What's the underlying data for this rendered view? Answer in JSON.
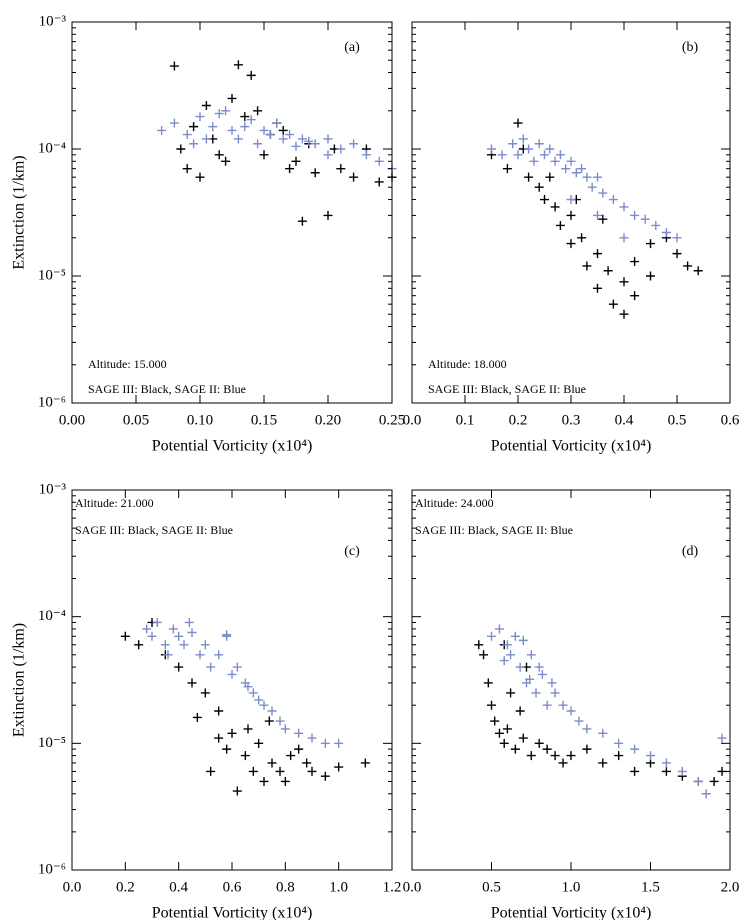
{
  "chart_data": [
    {
      "type": "scatter",
      "panel_label": "(a)",
      "annotations": [
        "Altitude: 15.000",
        "SAGE III: Black, SAGE II: Blue"
      ],
      "xlabel": "Potential Vorticity (x10⁴)",
      "ylabel": "Extinction (1/km)",
      "yscale": "log",
      "xlim": [
        0,
        0.25
      ],
      "xticks": [
        {
          "value": 0,
          "label": "0.00"
        },
        0.05,
        {
          "value": 0.1,
          "label": "0.10"
        },
        0.15,
        {
          "value": 0.2,
          "label": "0.20"
        },
        0.25
      ],
      "ylim": [
        1e-06,
        0.001
      ],
      "yticks": [
        {
          "value": 1e-06,
          "label": "10⁻⁶"
        },
        {
          "value": 1e-05,
          "label": "10⁻⁵"
        },
        {
          "value": 0.0001,
          "label": "10⁻⁴"
        },
        {
          "value": 0.001,
          "label": "10⁻³"
        }
      ],
      "series": [
        {
          "color": "#000000",
          "x": [
            0.08,
            0.13,
            0.14,
            0.09,
            0.1,
            0.12,
            0.15,
            0.17,
            0.18,
            0.2,
            0.22,
            0.24,
            0.25,
            0.21,
            0.19,
            0.16,
            0.11,
            0.085,
            0.095,
            0.105,
            0.125,
            0.145,
            0.165,
            0.185,
            0.205,
            0.23,
            0.175,
            0.155,
            0.135,
            0.115
          ],
          "values": [
            0.00045,
            0.00046,
            0.00038,
            7e-05,
            6e-05,
            8e-05,
            9e-05,
            7e-05,
            2.7e-05,
            3e-05,
            6e-05,
            5.5e-05,
            6e-05,
            7e-05,
            6.5e-05,
            0.00016,
            0.00012,
            0.0001,
            0.00015,
            0.00022,
            0.00025,
            0.0002,
            0.00014,
            0.00011,
            0.0001,
            0.0001,
            8e-05,
            0.00013,
            0.00018,
            9e-05
          ]
        },
        {
          "color": "#7b8ccc",
          "x": [
            0.07,
            0.08,
            0.09,
            0.1,
            0.11,
            0.12,
            0.13,
            0.14,
            0.15,
            0.16,
            0.17,
            0.18,
            0.19,
            0.2,
            0.21,
            0.22,
            0.23,
            0.24,
            0.25,
            0.095,
            0.105,
            0.115,
            0.125,
            0.135,
            0.145,
            0.155,
            0.165,
            0.175,
            0.185,
            0.2
          ],
          "values": [
            0.00014,
            0.00016,
            0.00013,
            0.00018,
            0.00015,
            0.0002,
            0.00012,
            0.00017,
            0.00014,
            0.00016,
            0.00013,
            0.00012,
            0.00011,
            0.00012,
            0.0001,
            0.00011,
            9e-05,
            8e-05,
            7e-05,
            0.00011,
            0.00012,
            0.00019,
            0.00014,
            0.00015,
            0.00011,
            0.00013,
            0.00012,
            0.000105,
            0.000115,
            9e-05
          ]
        }
      ]
    },
    {
      "type": "scatter",
      "panel_label": "(b)",
      "annotations": [
        "Altitude: 18.000",
        "SAGE III: Black, SAGE II: Blue"
      ],
      "xlabel": "Potential Vorticity (x10⁴)",
      "yscale": "log",
      "xlim": [
        0,
        0.6
      ],
      "xticks": [
        {
          "value": 0,
          "label": "0.0"
        },
        0.1,
        0.2,
        0.3,
        0.4,
        0.5,
        0.6
      ],
      "ylim": [
        1e-06,
        0.001
      ],
      "series": [
        {
          "color": "#000000",
          "x": [
            0.15,
            0.18,
            0.2,
            0.22,
            0.24,
            0.25,
            0.27,
            0.28,
            0.3,
            0.3,
            0.32,
            0.33,
            0.35,
            0.35,
            0.37,
            0.38,
            0.4,
            0.4,
            0.42,
            0.42,
            0.45,
            0.45,
            0.48,
            0.5,
            0.52,
            0.54,
            0.21,
            0.26,
            0.31,
            0.36
          ],
          "values": [
            9e-05,
            7e-05,
            0.00016,
            6e-05,
            5e-05,
            4e-05,
            3.5e-05,
            2.5e-05,
            3e-05,
            1.8e-05,
            2e-05,
            1.2e-05,
            1.5e-05,
            8e-06,
            1.1e-05,
            6e-06,
            5e-06,
            9e-06,
            7e-06,
            1.3e-05,
            1e-05,
            1.8e-05,
            2e-05,
            1.5e-05,
            1.2e-05,
            1.1e-05,
            0.0001,
            6e-05,
            4e-05,
            2.8e-05
          ]
        },
        {
          "color": "#7b8ccc",
          "x": [
            0.15,
            0.17,
            0.19,
            0.2,
            0.21,
            0.22,
            0.23,
            0.24,
            0.25,
            0.26,
            0.27,
            0.28,
            0.29,
            0.3,
            0.31,
            0.32,
            0.33,
            0.34,
            0.35,
            0.36,
            0.38,
            0.4,
            0.42,
            0.44,
            0.46,
            0.48,
            0.5,
            0.3,
            0.35,
            0.4
          ],
          "values": [
            0.0001,
            9e-05,
            0.00011,
            9e-05,
            0.00012,
            0.0001,
            8e-05,
            0.00011,
            9e-05,
            0.0001,
            8e-05,
            9e-05,
            7e-05,
            8e-05,
            6.5e-05,
            7e-05,
            6e-05,
            5e-05,
            6e-05,
            4.5e-05,
            4e-05,
            3.5e-05,
            3e-05,
            2.8e-05,
            2.5e-05,
            2.2e-05,
            2e-05,
            4e-05,
            3e-05,
            2e-05
          ]
        }
      ]
    },
    {
      "type": "scatter",
      "panel_label": "(c)",
      "annotations": [
        "Altitude: 21.000",
        "SAGE III: Black, SAGE II: Blue"
      ],
      "xlabel": "Potential Vorticity (x10⁴)",
      "ylabel": "Extinction (1/km)",
      "yscale": "log",
      "xlim": [
        0,
        1.2
      ],
      "xticks": [
        {
          "value": 0,
          "label": "0.0"
        },
        0.2,
        0.4,
        0.6,
        0.8,
        {
          "value": 1,
          "label": "1.0"
        },
        1.2
      ],
      "ylim": [
        1e-06,
        0.001
      ],
      "yticks": [
        {
          "value": 1e-06,
          "label": "10⁻⁶"
        },
        {
          "value": 1e-05,
          "label": "10⁻⁵"
        },
        {
          "value": 0.0001,
          "label": "10⁻⁴"
        },
        {
          "value": 0.001,
          "label": "10⁻³"
        }
      ],
      "series": [
        {
          "color": "#000000",
          "x": [
            0.2,
            0.25,
            0.3,
            0.35,
            0.4,
            0.45,
            0.5,
            0.55,
            0.6,
            0.62,
            0.65,
            0.68,
            0.7,
            0.72,
            0.75,
            0.78,
            0.8,
            0.82,
            0.85,
            0.88,
            0.9,
            0.95,
            1.0,
            1.1,
            0.47,
            0.52,
            0.58,
            0.66,
            0.74,
            0.55
          ],
          "values": [
            7e-05,
            6e-05,
            9e-05,
            5e-05,
            4e-05,
            3e-05,
            2.5e-05,
            1.8e-05,
            1.2e-05,
            4.2e-06,
            8e-06,
            6e-06,
            1e-05,
            5e-06,
            7e-06,
            6e-06,
            5e-06,
            8e-06,
            9e-06,
            7e-06,
            6e-06,
            5.5e-06,
            6.5e-06,
            7e-06,
            1.6e-05,
            6e-06,
            9e-06,
            1.3e-05,
            1.5e-05,
            1.1e-05
          ]
        },
        {
          "color": "#7b8ccc",
          "x": [
            0.28,
            0.3,
            0.32,
            0.35,
            0.38,
            0.4,
            0.42,
            0.45,
            0.48,
            0.5,
            0.52,
            0.55,
            0.58,
            0.6,
            0.62,
            0.65,
            0.68,
            0.7,
            0.72,
            0.75,
            0.78,
            0.8,
            0.85,
            0.9,
            0.95,
            1.0,
            0.58,
            0.44,
            0.36,
            0.66
          ],
          "values": [
            8e-05,
            7e-05,
            9e-05,
            6e-05,
            8e-05,
            7e-05,
            6e-05,
            7.5e-05,
            5e-05,
            6e-05,
            4e-05,
            5e-05,
            7e-05,
            3.5e-05,
            4e-05,
            3e-05,
            2.5e-05,
            2.2e-05,
            2e-05,
            1.8e-05,
            1.5e-05,
            1.3e-05,
            1.2e-05,
            1.1e-05,
            1e-05,
            1e-05,
            7.2e-05,
            9e-05,
            5e-05,
            2.8e-05
          ]
        }
      ]
    },
    {
      "type": "scatter",
      "panel_label": "(d)",
      "annotations": [
        "Altitude: 24.000",
        "SAGE III: Black, SAGE II: Blue"
      ],
      "xlabel": "Potential Vorticity (x10⁴)",
      "yscale": "log",
      "xlim": [
        0,
        2
      ],
      "xticks": [
        {
          "value": 0,
          "label": "0.0"
        },
        0.5,
        {
          "value": 1,
          "label": "1.0"
        },
        1.5,
        {
          "value": 2,
          "label": "2.0"
        }
      ],
      "ylim": [
        1e-06,
        0.001
      ],
      "series": [
        {
          "color": "#000000",
          "x": [
            0.42,
            0.45,
            0.48,
            0.5,
            0.52,
            0.55,
            0.58,
            0.6,
            0.65,
            0.7,
            0.75,
            0.8,
            0.85,
            0.9,
            0.95,
            1.0,
            1.1,
            1.2,
            1.3,
            1.4,
            1.5,
            1.6,
            1.7,
            1.8,
            1.9,
            0.62,
            0.68,
            0.72,
            0.58,
            1.95
          ],
          "values": [
            6e-05,
            5e-05,
            3e-05,
            2e-05,
            1.5e-05,
            1.2e-05,
            1e-05,
            1.3e-05,
            9e-06,
            1.1e-05,
            8e-06,
            1e-05,
            9e-06,
            8e-06,
            7e-06,
            8e-06,
            9e-06,
            7e-06,
            8e-06,
            6e-06,
            7e-06,
            6e-06,
            5.5e-06,
            5e-06,
            5e-06,
            2.5e-05,
            1.8e-05,
            4e-05,
            6e-05,
            6e-06
          ]
        },
        {
          "color": "#7b8ccc",
          "x": [
            0.5,
            0.55,
            0.6,
            0.62,
            0.65,
            0.68,
            0.7,
            0.72,
            0.75,
            0.78,
            0.8,
            0.82,
            0.85,
            0.88,
            0.9,
            0.95,
            1.0,
            1.05,
            1.1,
            1.2,
            1.3,
            1.4,
            1.5,
            1.6,
            1.7,
            1.8,
            1.85,
            1.95,
            0.58,
            0.74
          ],
          "values": [
            7e-05,
            8e-05,
            6e-05,
            5e-05,
            7e-05,
            4e-05,
            6.5e-05,
            3e-05,
            5e-05,
            2.5e-05,
            4e-05,
            3.5e-05,
            2e-05,
            3e-05,
            2.5e-05,
            2e-05,
            1.8e-05,
            1.5e-05,
            1.3e-05,
            1.2e-05,
            1e-05,
            9e-06,
            8e-06,
            7e-06,
            6e-06,
            5e-06,
            4e-06,
            1.1e-05,
            4.5e-05,
            3.2e-05
          ]
        }
      ]
    }
  ]
}
